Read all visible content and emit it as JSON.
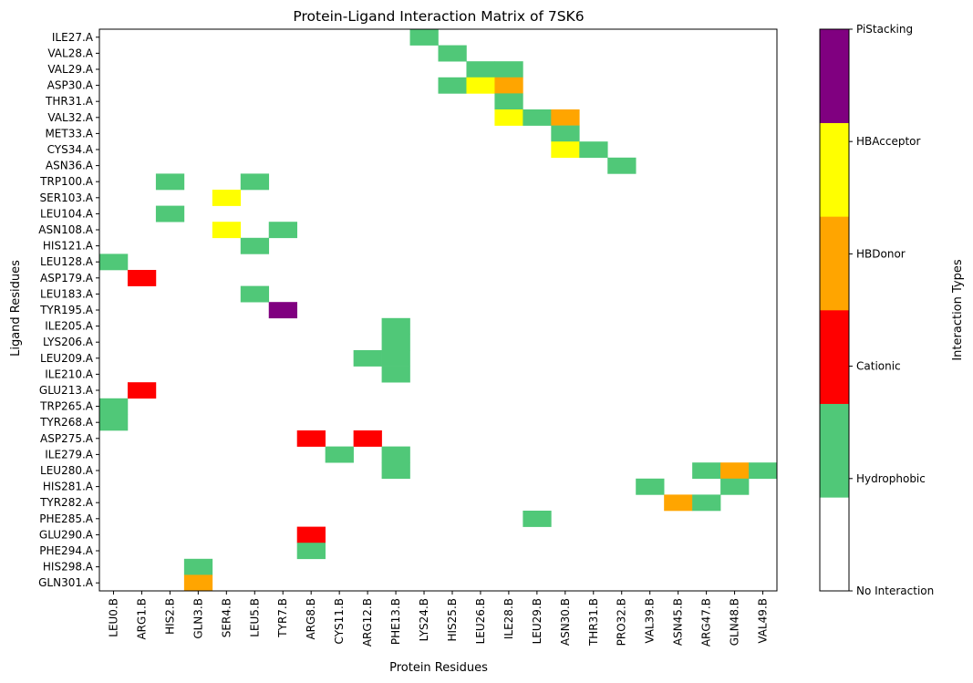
{
  "chart_data": {
    "type": "heatmap",
    "title": "Protein-Ligand Interaction Matrix of 7SK6",
    "xlabel": "Protein Residues",
    "ylabel": "Ligand Residues",
    "colorbar_label": "Interaction Types",
    "x_categories": [
      "LEU0.B",
      "ARG1.B",
      "HIS2.B",
      "GLN3.B",
      "SER4.B",
      "LEU5.B",
      "TYR7.B",
      "ARG8.B",
      "CYS11.B",
      "ARG12.B",
      "PHE13.B",
      "LYS24.B",
      "HIS25.B",
      "LEU26.B",
      "ILE28.B",
      "LEU29.B",
      "ASN30.B",
      "THR31.B",
      "PRO32.B",
      "VAL39.B",
      "ASN45.B",
      "ARG47.B",
      "GLN48.B",
      "VAL49.B"
    ],
    "y_categories": [
      "ILE27.A",
      "VAL28.A",
      "VAL29.A",
      "ASP30.A",
      "THR31.A",
      "VAL32.A",
      "MET33.A",
      "CYS34.A",
      "ASN36.A",
      "TRP100.A",
      "SER103.A",
      "LEU104.A",
      "ASN108.A",
      "HIS121.A",
      "LEU128.A",
      "ASP179.A",
      "LEU183.A",
      "TYR195.A",
      "ILE205.A",
      "LYS206.A",
      "LEU209.A",
      "ILE210.A",
      "GLU213.A",
      "TRP265.A",
      "TYR268.A",
      "ASP275.A",
      "ILE279.A",
      "LEU280.A",
      "HIS281.A",
      "TYR282.A",
      "PHE285.A",
      "GLU290.A",
      "PHE294.A",
      "HIS298.A",
      "GLN301.A"
    ],
    "interaction_types": [
      {
        "label": "No Interaction",
        "color": "#ffffff"
      },
      {
        "label": "Hydrophobic",
        "color": "#50c878"
      },
      {
        "label": "Cationic",
        "color": "#ff0000"
      },
      {
        "label": "HBDonor",
        "color": "#ffa500"
      },
      {
        "label": "HBAcceptor",
        "color": "#ffff00"
      },
      {
        "label": "PiStacking",
        "color": "#800080"
      }
    ],
    "cells": [
      {
        "x": "LYS24.B",
        "y": "ILE27.A",
        "type": "Hydrophobic"
      },
      {
        "x": "HIS25.B",
        "y": "VAL28.A",
        "type": "Hydrophobic"
      },
      {
        "x": "LEU26.B",
        "y": "VAL29.A",
        "type": "Hydrophobic"
      },
      {
        "x": "ILE28.B",
        "y": "VAL29.A",
        "type": "Hydrophobic"
      },
      {
        "x": "HIS25.B",
        "y": "ASP30.A",
        "type": "Hydrophobic"
      },
      {
        "x": "LEU26.B",
        "y": "ASP30.A",
        "type": "HBAcceptor"
      },
      {
        "x": "ILE28.B",
        "y": "ASP30.A",
        "type": "HBDonor"
      },
      {
        "x": "ILE28.B",
        "y": "THR31.A",
        "type": "Hydrophobic"
      },
      {
        "x": "ILE28.B",
        "y": "VAL32.A",
        "type": "HBAcceptor"
      },
      {
        "x": "LEU29.B",
        "y": "VAL32.A",
        "type": "Hydrophobic"
      },
      {
        "x": "ASN30.B",
        "y": "VAL32.A",
        "type": "HBDonor"
      },
      {
        "x": "ASN30.B",
        "y": "MET33.A",
        "type": "Hydrophobic"
      },
      {
        "x": "ASN30.B",
        "y": "CYS34.A",
        "type": "HBAcceptor"
      },
      {
        "x": "THR31.B",
        "y": "CYS34.A",
        "type": "Hydrophobic"
      },
      {
        "x": "PRO32.B",
        "y": "ASN36.A",
        "type": "Hydrophobic"
      },
      {
        "x": "HIS2.B",
        "y": "TRP100.A",
        "type": "Hydrophobic"
      },
      {
        "x": "LEU5.B",
        "y": "TRP100.A",
        "type": "Hydrophobic"
      },
      {
        "x": "SER4.B",
        "y": "SER103.A",
        "type": "HBAcceptor"
      },
      {
        "x": "HIS2.B",
        "y": "LEU104.A",
        "type": "Hydrophobic"
      },
      {
        "x": "SER4.B",
        "y": "ASN108.A",
        "type": "HBAcceptor"
      },
      {
        "x": "TYR7.B",
        "y": "ASN108.A",
        "type": "Hydrophobic"
      },
      {
        "x": "LEU5.B",
        "y": "HIS121.A",
        "type": "Hydrophobic"
      },
      {
        "x": "LEU0.B",
        "y": "LEU128.A",
        "type": "Hydrophobic"
      },
      {
        "x": "ARG1.B",
        "y": "ASP179.A",
        "type": "Cationic"
      },
      {
        "x": "LEU5.B",
        "y": "LEU183.A",
        "type": "Hydrophobic"
      },
      {
        "x": "TYR7.B",
        "y": "TYR195.A",
        "type": "PiStacking"
      },
      {
        "x": "PHE13.B",
        "y": "ILE205.A",
        "type": "Hydrophobic"
      },
      {
        "x": "PHE13.B",
        "y": "LYS206.A",
        "type": "Hydrophobic"
      },
      {
        "x": "ARG12.B",
        "y": "LEU209.A",
        "type": "Hydrophobic"
      },
      {
        "x": "PHE13.B",
        "y": "LEU209.A",
        "type": "Hydrophobic"
      },
      {
        "x": "PHE13.B",
        "y": "ILE210.A",
        "type": "Hydrophobic"
      },
      {
        "x": "ARG1.B",
        "y": "GLU213.A",
        "type": "Cationic"
      },
      {
        "x": "LEU0.B",
        "y": "TRP265.A",
        "type": "Hydrophobic"
      },
      {
        "x": "LEU0.B",
        "y": "TYR268.A",
        "type": "Hydrophobic"
      },
      {
        "x": "ARG8.B",
        "y": "ASP275.A",
        "type": "Cationic"
      },
      {
        "x": "ARG12.B",
        "y": "ASP275.A",
        "type": "Cationic"
      },
      {
        "x": "CYS11.B",
        "y": "ILE279.A",
        "type": "Hydrophobic"
      },
      {
        "x": "PHE13.B",
        "y": "ILE279.A",
        "type": "Hydrophobic"
      },
      {
        "x": "PHE13.B",
        "y": "LEU280.A",
        "type": "Hydrophobic"
      },
      {
        "x": "ARG47.B",
        "y": "LEU280.A",
        "type": "Hydrophobic"
      },
      {
        "x": "GLN48.B",
        "y": "LEU280.A",
        "type": "HBDonor"
      },
      {
        "x": "VAL49.B",
        "y": "LEU280.A",
        "type": "Hydrophobic"
      },
      {
        "x": "VAL39.B",
        "y": "HIS281.A",
        "type": "Hydrophobic"
      },
      {
        "x": "GLN48.B",
        "y": "HIS281.A",
        "type": "Hydrophobic"
      },
      {
        "x": "ASN45.B",
        "y": "TYR282.A",
        "type": "HBDonor"
      },
      {
        "x": "ARG47.B",
        "y": "TYR282.A",
        "type": "Hydrophobic"
      },
      {
        "x": "LEU29.B",
        "y": "PHE285.A",
        "type": "Hydrophobic"
      },
      {
        "x": "ARG8.B",
        "y": "GLU290.A",
        "type": "Cationic"
      },
      {
        "x": "ARG8.B",
        "y": "PHE294.A",
        "type": "Hydrophobic"
      },
      {
        "x": "GLN3.B",
        "y": "HIS298.A",
        "type": "Hydrophobic"
      },
      {
        "x": "GLN3.B",
        "y": "GLN301.A",
        "type": "HBDonor"
      }
    ]
  }
}
